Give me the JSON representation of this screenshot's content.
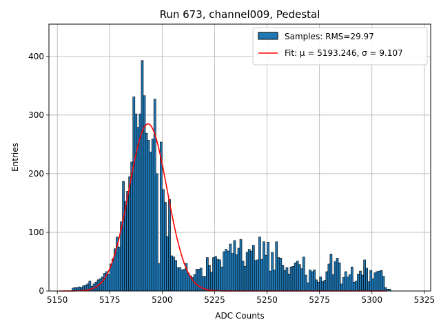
{
  "chart_data": {
    "type": "bar",
    "title": "Run 673, channel009, Pedestal",
    "xlabel": "ADC Counts",
    "ylabel": "Entries",
    "xlim": [
      5146,
      5328
    ],
    "ylim": [
      0,
      455
    ],
    "xticks": [
      5150,
      5175,
      5200,
      5225,
      5250,
      5275,
      5300,
      5325
    ],
    "yticks": [
      0,
      100,
      200,
      300,
      400
    ],
    "grid": true,
    "legend_position": "top-right",
    "bin_width": 1,
    "bar_color": "#1f77b4",
    "fit_color": "#ff0000",
    "series": [
      {
        "name": "Samples: RMS=29.97",
        "kind": "histogram",
        "bin_start": 5157,
        "values": [
          5,
          6,
          6,
          7,
          6,
          9,
          10,
          12,
          17,
          8,
          12,
          15,
          19,
          21,
          24,
          30,
          33,
          29,
          46,
          55,
          72,
          92,
          75,
          118,
          187,
          153,
          170,
          195,
          220,
          331,
          302,
          279,
          302,
          393,
          333,
          269,
          257,
          237,
          259,
          327,
          200,
          47,
          254,
          173,
          151,
          93,
          156,
          60,
          58,
          52,
          40,
          40,
          36,
          37,
          47,
          30,
          26,
          23,
          28,
          37,
          37,
          39,
          25,
          25,
          57,
          44,
          32,
          57,
          59,
          54,
          53,
          41,
          67,
          71,
          68,
          80,
          64,
          86,
          62,
          73,
          88,
          51,
          42,
          66,
          71,
          68,
          78,
          52,
          53,
          92,
          54,
          84,
          61,
          83,
          34,
          66,
          36,
          84,
          57,
          56,
          44,
          35,
          40,
          29,
          41,
          42,
          48,
          51,
          45,
          38,
          58,
          27,
          14,
          36,
          33,
          36,
          19,
          15,
          24,
          16,
          18,
          33,
          46,
          63,
          28,
          50,
          56,
          48,
          12,
          23,
          33,
          24,
          28,
          41,
          15,
          17,
          29,
          34,
          27,
          53,
          39,
          16,
          35,
          21,
          31,
          33,
          34,
          35,
          25,
          6,
          3,
          3
        ]
      },
      {
        "name": "Fit: μ = 5193.246, σ = 9.107",
        "kind": "gaussian",
        "mu": 5193.246,
        "sigma": 9.107,
        "amplitude": 285,
        "range": [
          5151,
          5307
        ]
      }
    ]
  }
}
